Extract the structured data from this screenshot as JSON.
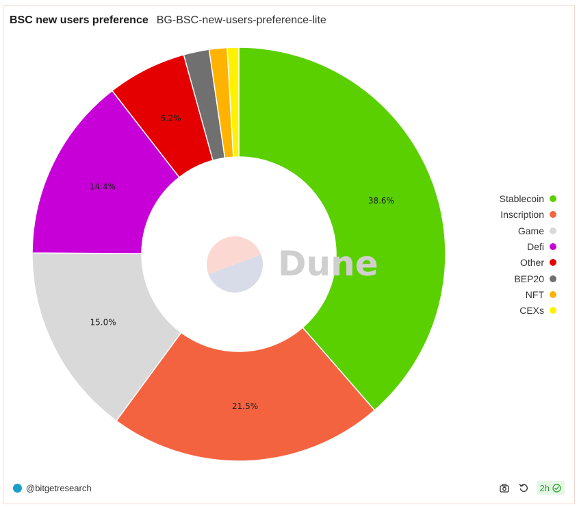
{
  "header": {
    "title": "BSC new users preference",
    "subtitle": "BG-BSC-new-users-preference-lite"
  },
  "chart_data": {
    "type": "pie",
    "donut": true,
    "categories": [
      "Stablecoin",
      "Inscription",
      "Game",
      "Defi",
      "Other",
      "BEP20",
      "NFT",
      "CEXs"
    ],
    "values": [
      38.6,
      21.5,
      15.0,
      14.4,
      6.2,
      2.0,
      1.4,
      0.9
    ],
    "value_labels": [
      "38.6%",
      "21.5%",
      "15.0%",
      "14.4%",
      "6.2%",
      "",
      "",
      ""
    ],
    "colors": [
      "#5bd000",
      "#f46340",
      "#d9d9d9",
      "#c800d8",
      "#e40000",
      "#707070",
      "#ffb300",
      "#fff200"
    ],
    "legend_position": "right"
  },
  "watermark": {
    "text": "Dune",
    "colors": [
      "#fbd9d2",
      "#d8dbe8"
    ]
  },
  "footer": {
    "author": "@bitgetresearch",
    "age": "2h",
    "camera_icon": "camera-icon",
    "refresh_icon": "refresh-icon",
    "check_icon": "check-circle-icon"
  }
}
